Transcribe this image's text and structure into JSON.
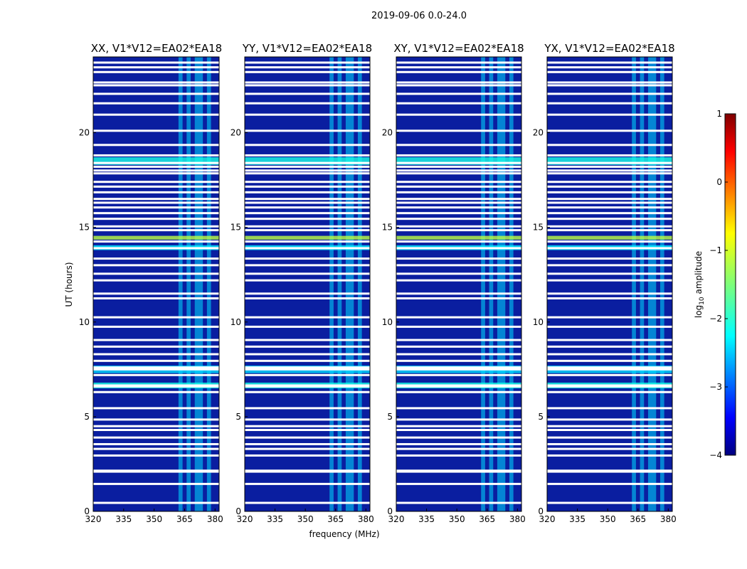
{
  "chart_data": {
    "type": "heatmap",
    "suptitle": "2019-09-06 0.0-24.0",
    "xlabel": "frequency (MHz)",
    "ylabel": "UT (hours)",
    "xlim": [
      320,
      382
    ],
    "ylim": [
      0,
      24
    ],
    "xticks": [
      "320",
      "335",
      "350",
      "365",
      "380"
    ],
    "yticks": [
      "0",
      "5",
      "10",
      "15",
      "20"
    ],
    "colorbar": {
      "label": "log10 amplitude",
      "range": [
        -4,
        1
      ],
      "ticks": [
        "1",
        "0",
        "−1",
        "−2",
        "−3",
        "−4"
      ],
      "colormap": "jet"
    },
    "panels": [
      {
        "title": "XX, V1*V12=EA02*EA18",
        "pol": "XX"
      },
      {
        "title": "YY, V1*V12=EA02*EA18",
        "pol": "YY"
      },
      {
        "title": "XY, V1*V12=EA02*EA18",
        "pol": "XY"
      },
      {
        "title": "YX, V1*V12=EA02*EA18",
        "pol": "YX"
      }
    ],
    "flagged_ut_hours": [
      0.45,
      1.45,
      2.1,
      2.15,
      2.95,
      3.3,
      3.55,
      3.9,
      4.3,
      4.5,
      4.85,
      5.45,
      6.3,
      6.6,
      6.65,
      7.2,
      7.5,
      7.6,
      7.95,
      8.3,
      8.7,
      9.05,
      9.75,
      10.25,
      11.25,
      11.5,
      12.2,
      12.55,
      13.0,
      13.35,
      13.9,
      14.25,
      14.85,
      15.05,
      15.45,
      15.75,
      16.05,
      16.3,
      16.5,
      16.85,
      17.15,
      17.4,
      17.85,
      18.0,
      18.2,
      18.4,
      18.8,
      19.35,
      20.1,
      20.95,
      21.55,
      22.05,
      22.5,
      22.65,
      23.2,
      23.45,
      23.7
    ],
    "bright_ut_bands": [
      [
        6.5,
        6.8,
        -2.0
      ],
      [
        7.3,
        7.7,
        -2.3
      ],
      [
        13.8,
        14.05,
        -2.2
      ],
      [
        14.35,
        14.55,
        -1.2
      ],
      [
        18.3,
        18.7,
        -2.0
      ]
    ],
    "rfi_freq_bands_mhz": [
      [
        362,
        364
      ],
      [
        366,
        368
      ],
      [
        370,
        374
      ],
      [
        376,
        378
      ]
    ]
  }
}
